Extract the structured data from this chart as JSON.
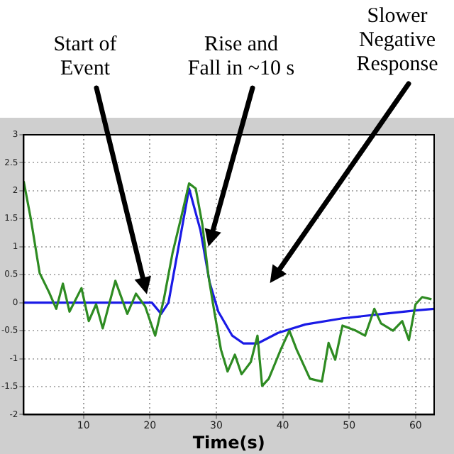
{
  "chart_data": {
    "type": "line",
    "xlabel": "Time(s)",
    "xlim": [
      1,
      62.8
    ],
    "xticks": [
      10,
      20,
      30,
      40,
      50,
      60
    ],
    "ylim": [
      -2,
      3
    ],
    "yticks": [
      -2,
      -1.5,
      -1,
      -0.5,
      0,
      0.5,
      1,
      1.5,
      2,
      2.5,
      3
    ],
    "grid": true,
    "legend": false,
    "marker": "none",
    "line_style": "solid",
    "series": [
      {
        "color": "#2e8b22",
        "x": [
          1,
          2.1,
          3.4,
          4.8,
          5.9,
          6.9,
          7.9,
          9.7,
          10.8,
          11.9,
          12.9,
          14.8,
          16.6,
          17.9,
          19.3,
          20.8,
          22.1,
          23.4,
          24.8,
          25.9,
          26.9,
          27.9,
          28.8,
          29.7,
          30.7,
          31.7,
          32.8,
          33.8,
          35.2,
          36.2,
          36.9,
          37.9,
          39.7,
          41,
          42.1,
          44.1,
          45.9,
          46.9,
          47.9,
          49,
          51,
          52.4,
          53.8,
          54.8,
          56.6,
          58,
          59,
          60,
          61,
          62.4
        ],
        "values": [
          2.17,
          1.48,
          0.53,
          0.19,
          -0.11,
          0.34,
          -0.16,
          0.26,
          -0.33,
          -0.03,
          -0.46,
          0.39,
          -0.2,
          0.16,
          -0.07,
          -0.59,
          0.06,
          0.88,
          1.57,
          2.13,
          2.04,
          1.4,
          0.49,
          -0.16,
          -0.84,
          -1.23,
          -0.93,
          -1.28,
          -1.06,
          -0.59,
          -1.49,
          -1.36,
          -0.84,
          -0.5,
          -0.84,
          -1.36,
          -1.41,
          -0.72,
          -1.02,
          -0.41,
          -0.5,
          -0.59,
          -0.11,
          -0.37,
          -0.5,
          -0.33,
          -0.67,
          -0.03,
          0.1,
          0.06
        ]
      },
      {
        "color": "#1a1ae6",
        "x": [
          1,
          20.3,
          21.7,
          22.8,
          25.9,
          27.6,
          29,
          30.3,
          32.4,
          34.1,
          36.2,
          39.3,
          43.4,
          49,
          55.2,
          60,
          62.8
        ],
        "values": [
          0,
          0,
          -0.2,
          0,
          2.04,
          1.3,
          0.36,
          -0.16,
          -0.59,
          -0.73,
          -0.73,
          -0.54,
          -0.39,
          -0.28,
          -0.2,
          -0.14,
          -0.11
        ]
      }
    ],
    "annotations": [
      "Start of\nEvent",
      "Rise and\nFall in ~10 s",
      "Slower\nNegative\nResponse"
    ]
  }
}
